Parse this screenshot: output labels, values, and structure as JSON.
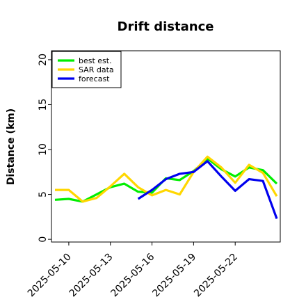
{
  "chart_data": {
    "type": "line",
    "title": "Drift distance",
    "xlabel": "",
    "ylabel": "Distance (km)",
    "ylim": [
      -0.3,
      21
    ],
    "yticks": [
      0,
      5,
      10,
      15,
      20
    ],
    "xlim": [
      "2025-05-08 18:00",
      "2025-05-25 06:00"
    ],
    "xticks": [
      "2025-05-10",
      "2025-05-13",
      "2025-05-16",
      "2025-05-19",
      "2025-05-22"
    ],
    "x": [
      "2025-05-09",
      "2025-05-10",
      "2025-05-11",
      "2025-05-12",
      "2025-05-13",
      "2025-05-14",
      "2025-05-15",
      "2025-05-16",
      "2025-05-17",
      "2025-05-18",
      "2025-05-19",
      "2025-05-20",
      "2025-05-21",
      "2025-05-22",
      "2025-05-23",
      "2025-05-24",
      "2025-05-25"
    ],
    "series": [
      {
        "name": "best est.",
        "color": "#00ee00",
        "values": [
          4.4,
          4.5,
          4.2,
          5.0,
          5.8,
          6.2,
          5.3,
          5.2,
          6.8,
          6.6,
          7.6,
          9.0,
          7.8,
          7.0,
          8.0,
          7.7,
          6.2
        ]
      },
      {
        "name": "SAR data",
        "color": "#ffd700",
        "values": [
          5.5,
          5.5,
          4.2,
          4.6,
          5.9,
          7.3,
          5.8,
          4.9,
          5.5,
          5.0,
          7.5,
          9.2,
          8.0,
          6.3,
          8.3,
          7.4,
          4.8
        ]
      },
      {
        "name": "forecast",
        "color": "#0000ee",
        "values": [
          null,
          null,
          null,
          null,
          null,
          null,
          4.5,
          5.5,
          6.7,
          7.3,
          7.5,
          8.7,
          7.0,
          5.4,
          6.7,
          6.5,
          2.3
        ]
      }
    ],
    "legend": "top-left",
    "grid": false
  }
}
